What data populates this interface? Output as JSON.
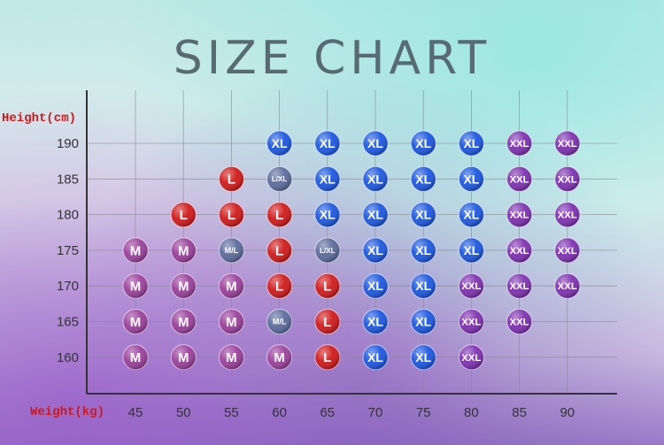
{
  "title": "SIZE CHART",
  "chart_data": {
    "type": "scatter",
    "ylabel": "Height(cm)",
    "xlabel": "Weight(kg)",
    "x_ticks": [
      45,
      50,
      55,
      60,
      65,
      70,
      75,
      80,
      85,
      90
    ],
    "y_ticks": [
      190,
      185,
      180,
      175,
      170,
      165,
      160
    ],
    "grid": true,
    "colors": {
      "M": "#9a3f9a",
      "L": "#d01818",
      "XL": "#1a56e0",
      "XXL": "#7d2fb0",
      "M/L": "#5a6a9a",
      "L/XL": "#5a6a9a"
    },
    "points": [
      {
        "weight": 60,
        "height": 190,
        "size": "XL"
      },
      {
        "weight": 65,
        "height": 190,
        "size": "XL"
      },
      {
        "weight": 70,
        "height": 190,
        "size": "XL"
      },
      {
        "weight": 75,
        "height": 190,
        "size": "XL"
      },
      {
        "weight": 80,
        "height": 190,
        "size": "XL"
      },
      {
        "weight": 85,
        "height": 190,
        "size": "XXL"
      },
      {
        "weight": 90,
        "height": 190,
        "size": "XXL"
      },
      {
        "weight": 55,
        "height": 185,
        "size": "L"
      },
      {
        "weight": 60,
        "height": 185,
        "size": "L/XL"
      },
      {
        "weight": 65,
        "height": 185,
        "size": "XL"
      },
      {
        "weight": 70,
        "height": 185,
        "size": "XL"
      },
      {
        "weight": 75,
        "height": 185,
        "size": "XL"
      },
      {
        "weight": 80,
        "height": 185,
        "size": "XL"
      },
      {
        "weight": 85,
        "height": 185,
        "size": "XXL"
      },
      {
        "weight": 90,
        "height": 185,
        "size": "XXL"
      },
      {
        "weight": 50,
        "height": 180,
        "size": "L"
      },
      {
        "weight": 55,
        "height": 180,
        "size": "L"
      },
      {
        "weight": 60,
        "height": 180,
        "size": "L"
      },
      {
        "weight": 65,
        "height": 180,
        "size": "XL"
      },
      {
        "weight": 70,
        "height": 180,
        "size": "XL"
      },
      {
        "weight": 75,
        "height": 180,
        "size": "XL"
      },
      {
        "weight": 80,
        "height": 180,
        "size": "XL"
      },
      {
        "weight": 85,
        "height": 180,
        "size": "XXL"
      },
      {
        "weight": 90,
        "height": 180,
        "size": "XXL"
      },
      {
        "weight": 45,
        "height": 175,
        "size": "M"
      },
      {
        "weight": 50,
        "height": 175,
        "size": "M"
      },
      {
        "weight": 55,
        "height": 175,
        "size": "M/L"
      },
      {
        "weight": 60,
        "height": 175,
        "size": "L"
      },
      {
        "weight": 65,
        "height": 175,
        "size": "L/XL"
      },
      {
        "weight": 70,
        "height": 175,
        "size": "XL"
      },
      {
        "weight": 75,
        "height": 175,
        "size": "XL"
      },
      {
        "weight": 80,
        "height": 175,
        "size": "XL"
      },
      {
        "weight": 85,
        "height": 175,
        "size": "XXL"
      },
      {
        "weight": 90,
        "height": 175,
        "size": "XXL"
      },
      {
        "weight": 45,
        "height": 170,
        "size": "M"
      },
      {
        "weight": 50,
        "height": 170,
        "size": "M"
      },
      {
        "weight": 55,
        "height": 170,
        "size": "M"
      },
      {
        "weight": 60,
        "height": 170,
        "size": "L"
      },
      {
        "weight": 65,
        "height": 170,
        "size": "L"
      },
      {
        "weight": 70,
        "height": 170,
        "size": "XL"
      },
      {
        "weight": 75,
        "height": 170,
        "size": "XL"
      },
      {
        "weight": 80,
        "height": 170,
        "size": "XXL"
      },
      {
        "weight": 85,
        "height": 170,
        "size": "XXL"
      },
      {
        "weight": 90,
        "height": 170,
        "size": "XXL"
      },
      {
        "weight": 45,
        "height": 165,
        "size": "M"
      },
      {
        "weight": 50,
        "height": 165,
        "size": "M"
      },
      {
        "weight": 55,
        "height": 165,
        "size": "M"
      },
      {
        "weight": 60,
        "height": 165,
        "size": "M/L"
      },
      {
        "weight": 65,
        "height": 165,
        "size": "L"
      },
      {
        "weight": 70,
        "height": 165,
        "size": "XL"
      },
      {
        "weight": 75,
        "height": 165,
        "size": "XL"
      },
      {
        "weight": 80,
        "height": 165,
        "size": "XXL"
      },
      {
        "weight": 85,
        "height": 165,
        "size": "XXL"
      },
      {
        "weight": 45,
        "height": 160,
        "size": "M"
      },
      {
        "weight": 50,
        "height": 160,
        "size": "M"
      },
      {
        "weight": 55,
        "height": 160,
        "size": "M"
      },
      {
        "weight": 60,
        "height": 160,
        "size": "M"
      },
      {
        "weight": 65,
        "height": 160,
        "size": "L"
      },
      {
        "weight": 70,
        "height": 160,
        "size": "XL"
      },
      {
        "weight": 75,
        "height": 160,
        "size": "XL"
      },
      {
        "weight": 80,
        "height": 160,
        "size": "XXL"
      }
    ]
  }
}
